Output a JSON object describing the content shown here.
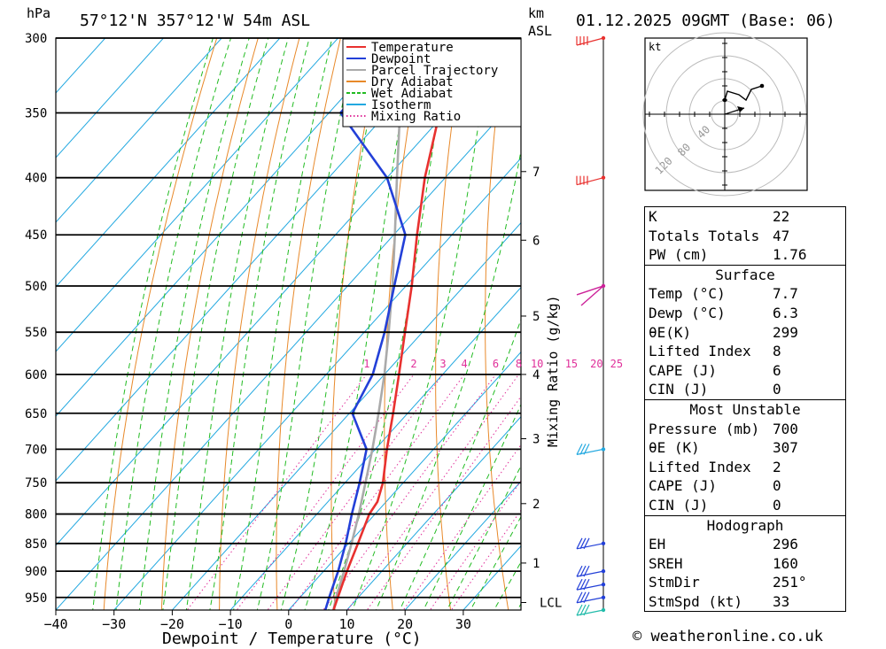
{
  "header": {
    "hpa_label": "hPa",
    "location": "57°12'N  357°12'W  54m  ASL",
    "km_label": "km",
    "asl_label": "ASL",
    "datetime": "01.12.2025  09GMT  (Base: 06)"
  },
  "legend": [
    {
      "name": "Temperature",
      "color": "#e8312f",
      "style": "solid"
    },
    {
      "name": "Dewpoint",
      "color": "#2340d8",
      "style": "solid"
    },
    {
      "name": "Parcel Trajectory",
      "color": "#aaaaaa",
      "style": "solid"
    },
    {
      "name": "Dry Adiabat",
      "color": "#e8892a",
      "style": "solid"
    },
    {
      "name": "Wet Adiabat",
      "color": "#22bb22",
      "style": "dashed"
    },
    {
      "name": "Isotherm",
      "color": "#22a8e0",
      "style": "solid"
    },
    {
      "name": "Mixing Ratio",
      "color": "#e0309a",
      "style": "dotted"
    }
  ],
  "chart_data": {
    "type": "line",
    "title": "",
    "xlabel": "Dewpoint / Temperature (°C)",
    "ylabel": "hPa",
    "xlim": [
      -40,
      40
    ],
    "ylim": [
      975,
      300
    ],
    "y_scale": "log",
    "skew": "skew-T",
    "pressure_levels": [
      300,
      350,
      400,
      450,
      500,
      550,
      600,
      650,
      700,
      750,
      800,
      850,
      900,
      950
    ],
    "temp_ticks": [
      -40,
      -30,
      -20,
      -10,
      0,
      10,
      20,
      30
    ],
    "km_ticks": [
      {
        "km": "7",
        "p": 395
      },
      {
        "km": "6",
        "p": 455
      },
      {
        "km": "5",
        "p": 532
      },
      {
        "km": "4",
        "p": 600
      },
      {
        "km": "3",
        "p": 685
      },
      {
        "km": "2",
        "p": 783
      },
      {
        "km": "1",
        "p": 885
      },
      {
        "km": "LCL",
        "p": 960
      }
    ],
    "mixing_ratio_label": "Mixing Ratio (g/kg)",
    "mixing_ratio_values": [
      "1",
      "2",
      "3",
      "4",
      "6",
      "8",
      "10",
      "15",
      "20",
      "25"
    ],
    "series": [
      {
        "name": "Temperature",
        "color": "#e8312f",
        "p": [
          975,
          950,
          900,
          850,
          800,
          780,
          750,
          700,
          650,
          600,
          550,
          500,
          450,
          400,
          350,
          300
        ],
        "t": [
          7.7,
          6.5,
          4.0,
          1.6,
          -1.0,
          -1.5,
          -3.5,
          -8.0,
          -12.5,
          -17.5,
          -23.0,
          -29.0,
          -36.0,
          -43.5,
          -51.0,
          -57.5
        ]
      },
      {
        "name": "Dewpoint",
        "color": "#2340d8",
        "p": [
          975,
          950,
          900,
          850,
          800,
          750,
          700,
          650,
          600,
          550,
          500,
          450,
          400,
          350,
          300
        ],
        "t": [
          6.3,
          5.0,
          2.5,
          -0.5,
          -4.0,
          -7.5,
          -11.5,
          -19.5,
          -22.0,
          -26.5,
          -32.0,
          -38.0,
          -50.0,
          -68.0,
          -69.0
        ]
      },
      {
        "name": "Parcel Trajectory",
        "color": "#aaaaaa",
        "p": [
          975,
          950,
          900,
          850,
          800,
          750,
          700,
          650,
          600,
          550,
          500,
          450,
          400,
          350,
          300
        ],
        "t": [
          7.7,
          6.2,
          3.5,
          0.5,
          -2.8,
          -6.5,
          -10.5,
          -15.0,
          -20.0,
          -25.8,
          -32.3,
          -39.8,
          -48.3,
          -57.8,
          -67.5
        ]
      }
    ],
    "wind_barbs": [
      {
        "p": 300,
        "color": "#e8312f"
      },
      {
        "p": 400,
        "color": "#e8312f"
      },
      {
        "p": 500,
        "color": "#cc2299"
      },
      {
        "p": 700,
        "color": "#22a8e0"
      },
      {
        "p": 850,
        "color": "#2340d8"
      },
      {
        "p": 900,
        "color": "#2340d8"
      },
      {
        "p": 925,
        "color": "#2340d8"
      },
      {
        "p": 950,
        "color": "#2340d8"
      },
      {
        "p": 975,
        "color": "#22bbaa"
      }
    ]
  },
  "hodograph": {
    "unit_label": "kt",
    "ring_labels": [
      "40",
      "80",
      "120"
    ]
  },
  "indices": {
    "rows": [
      {
        "k": "K",
        "v": "22"
      },
      {
        "k": "Totals Totals",
        "v": "47"
      },
      {
        "k": "PW (cm)",
        "v": "1.76"
      }
    ],
    "surface": {
      "title": "Surface",
      "rows": [
        {
          "k": "Temp (°C)",
          "v": "7.7"
        },
        {
          "k": "Dewp (°C)",
          "v": "6.3"
        },
        {
          "k": "θE(K)",
          "v": "299"
        },
        {
          "k": "Lifted Index",
          "v": "8"
        },
        {
          "k": "CAPE (J)",
          "v": "6"
        },
        {
          "k": "CIN (J)",
          "v": "0"
        }
      ]
    },
    "most_unstable": {
      "title": "Most Unstable",
      "rows": [
        {
          "k": "Pressure (mb)",
          "v": "700"
        },
        {
          "k": "θE (K)",
          "v": "307"
        },
        {
          "k": "Lifted Index",
          "v": "2"
        },
        {
          "k": "CAPE (J)",
          "v": "0"
        },
        {
          "k": "CIN (J)",
          "v": "0"
        }
      ]
    },
    "hodograph_table": {
      "title": "Hodograph",
      "rows": [
        {
          "k": "EH",
          "v": "296"
        },
        {
          "k": "SREH",
          "v": "160"
        },
        {
          "k": "StmDir",
          "v": "251°"
        },
        {
          "k": "StmSpd (kt)",
          "v": "33"
        }
      ]
    }
  },
  "copyright": "© weatheronline.co.uk"
}
